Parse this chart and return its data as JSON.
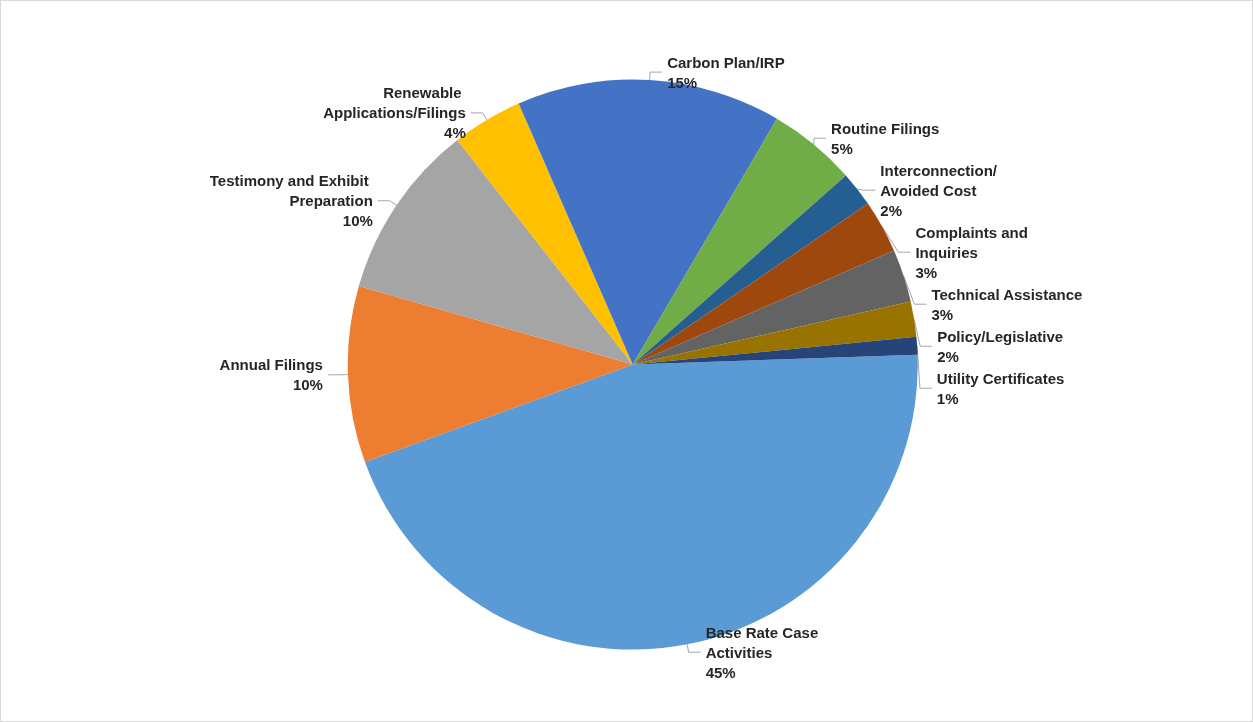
{
  "chart_data": {
    "type": "pie",
    "categories": [
      "Base Rate Case Activities",
      "Annual Filings",
      "Testimony and Exhibit Preparation",
      "Renewable Applications/Filings",
      "Carbon Plan/IRP",
      "Routine Filings",
      "Interconnection/Avoided Cost",
      "Complaints and Inquiries",
      "Technical Assistance",
      "Policy/Legislative",
      "Utility Certificates"
    ],
    "values": [
      45,
      10,
      10,
      4,
      15,
      5,
      2,
      3,
      3,
      2,
      1
    ],
    "value_labels": [
      "45%",
      "10%",
      "10%",
      "4%",
      "15%",
      "5%",
      "2%",
      "3%",
      "3%",
      "2%",
      "1%"
    ],
    "colors": [
      "#5b9bd5",
      "#ed7d31",
      "#a5a5a5",
      "#ffc000",
      "#4472c4",
      "#70ad47",
      "#255e91",
      "#9e480e",
      "#636363",
      "#997300",
      "#264478"
    ],
    "legend": false
  }
}
